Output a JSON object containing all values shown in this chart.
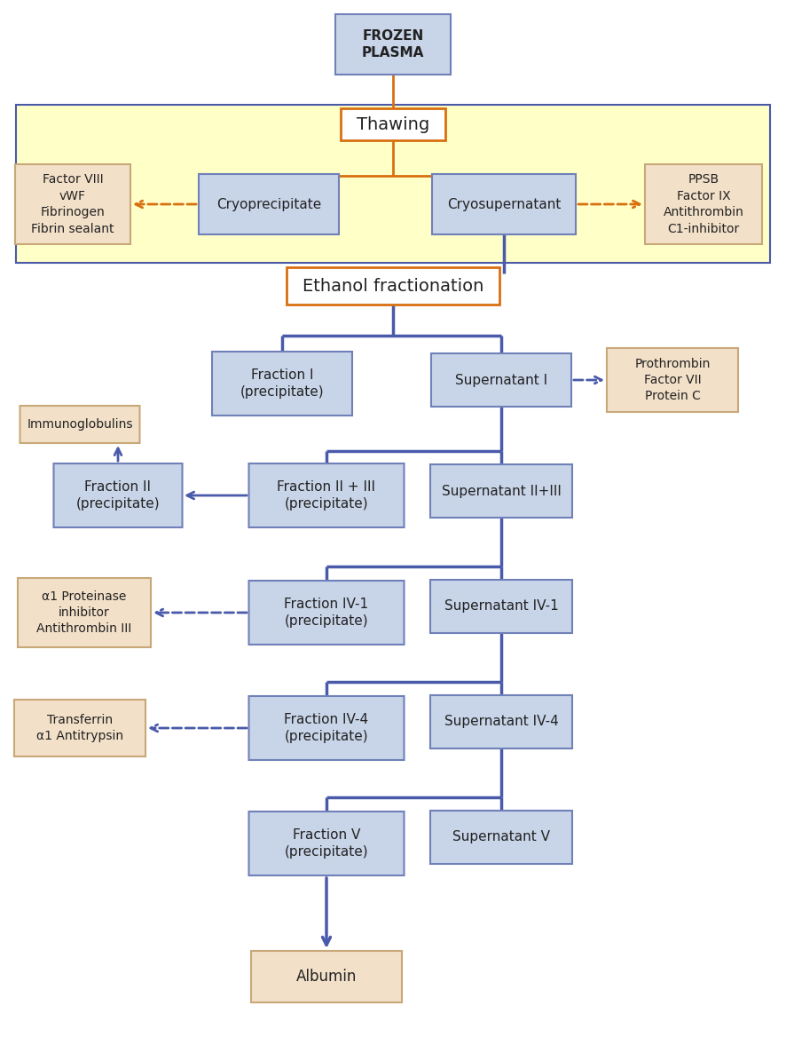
{
  "fig_width": 8.86,
  "fig_height": 11.95,
  "dpi": 100,
  "bg_color": "#ffffff",
  "yellow_bg": "#ffffc8",
  "blue_box_color": "#c8d4e8",
  "peach_box_color": "#f2e0c8",
  "white_box_color": "#ffffff",
  "blue_line": "#4a5aaa",
  "orange_line": "#d87010",
  "box_edge_blue": "#7080b8",
  "box_edge_peach": "#c8a878",
  "box_edge_orange": "#d87010",
  "frozen_plasma": "FROZEN\nPLASMA",
  "thawing": "Thawing",
  "cryoprecipitate": "Cryoprecipitate",
  "cryosupernatant": "Cryosupernatant",
  "left_cryo_box": "Factor VIII\nvWF\nFibrinogen\nFibrin sealant",
  "right_cryo_box": "PPSB\nFactor IX\nAntithrombin\nC1-inhibitor",
  "ethanol_fractionation": "Ethanol fractionation",
  "fraction_I": "Fraction I\n(precipitate)",
  "supernatant_I": "Supernatant I",
  "prothrombin_box": "Prothrombin\nFactor VII\nProtein C",
  "immunoglobulins": "Immunoglobulins",
  "fraction_II": "Fraction II\n(precipitate)",
  "fraction_II_III": "Fraction II + III\n(precipitate)",
  "supernatant_II_III": "Supernatant II+III",
  "fraction_IV1": "Fraction IV-1\n(precipitate)",
  "supernatant_IV1": "Supernatant IV-1",
  "a1_proteinase": "α1 Proteinase\ninhibitor\nAntithrombin III",
  "fraction_IV4": "Fraction IV-4\n(precipitate)",
  "supernatant_IV4": "Supernatant IV-4",
  "transferrin": "Transferrin\nα1 Antitrypsin",
  "fraction_V": "Fraction V\n(precipitate)",
  "supernatant_V": "Supernatant V",
  "albumin": "Albumin"
}
